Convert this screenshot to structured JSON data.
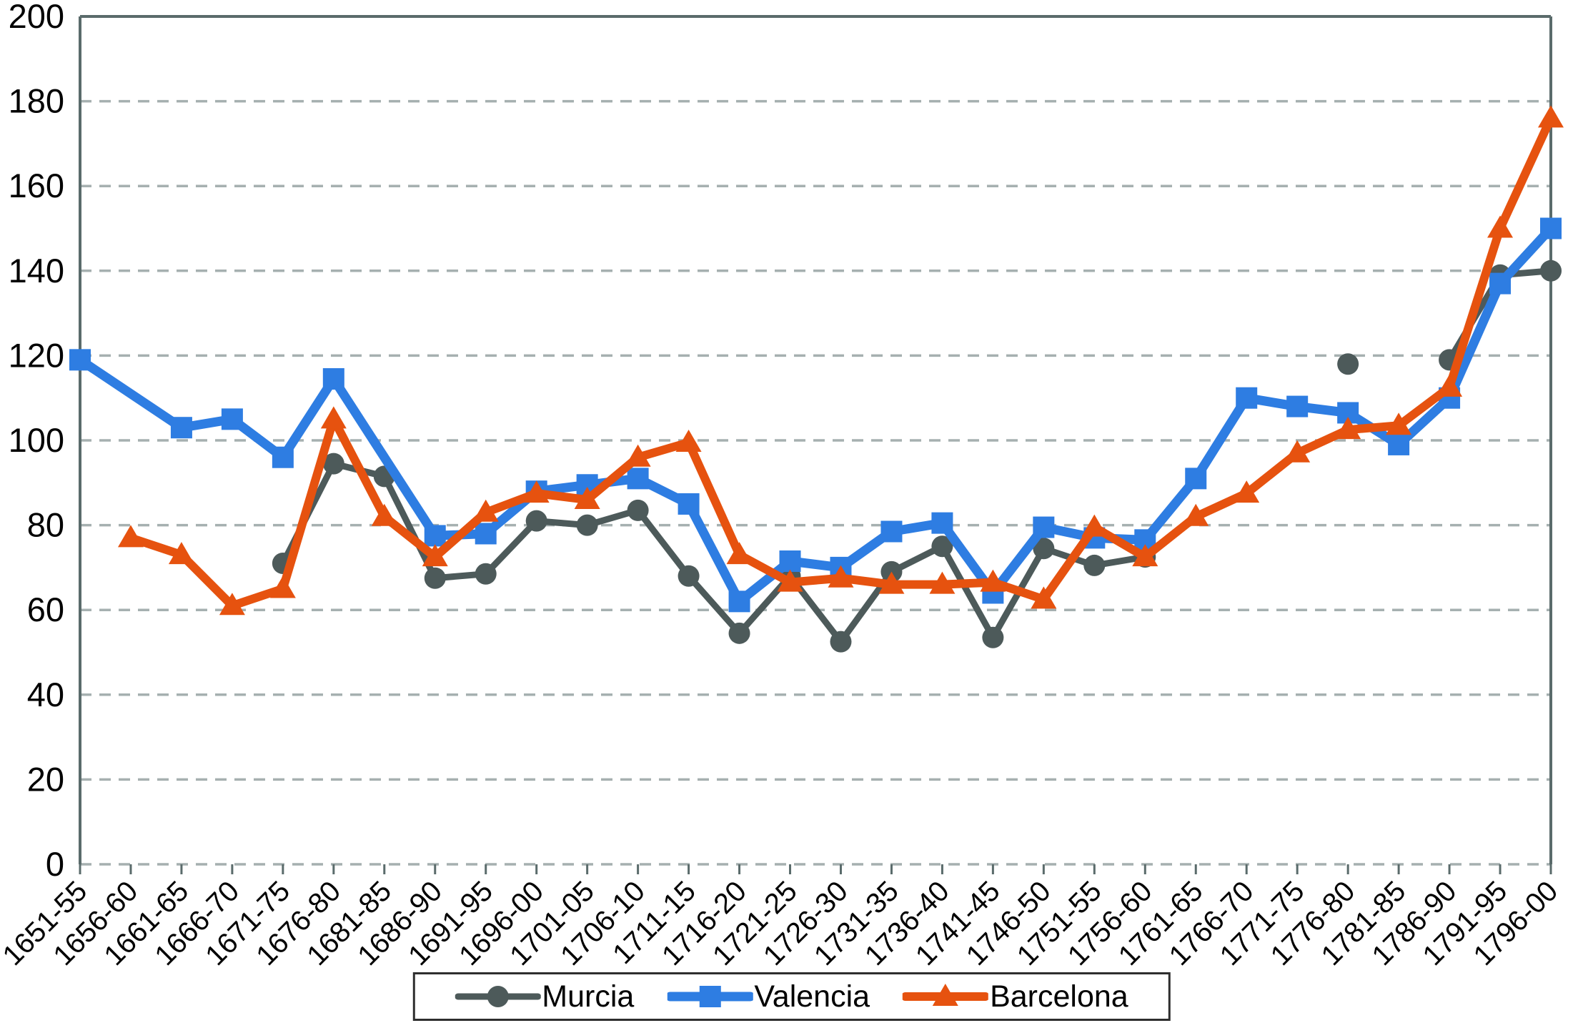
{
  "chart_data": {
    "type": "line",
    "title": "",
    "xlabel": "",
    "ylabel": "",
    "categories": [
      "1651-55",
      "1656-60",
      "1661-65",
      "1666-70",
      "1671-75",
      "1676-80",
      "1681-85",
      "1686-90",
      "1691-95",
      "1696-00",
      "1701-05",
      "1706-10",
      "1711-15",
      "1716-20",
      "1721-25",
      "1726-30",
      "1731-35",
      "1736-40",
      "1741-45",
      "1746-50",
      "1751-55",
      "1756-60",
      "1761-65",
      "1766-70",
      "1771-75",
      "1776-80",
      "1781-85",
      "1786-90",
      "1791-95",
      "1796-00"
    ],
    "series": [
      {
        "name": "Murcia",
        "color": "#4d5a5a",
        "marker": "circle",
        "line_width": 9,
        "connect_gaps": false,
        "values": [
          null,
          null,
          null,
          null,
          71,
          94.5,
          91.5,
          67.5,
          68.5,
          81,
          80,
          83.5,
          68,
          54.5,
          68,
          52.5,
          69,
          75,
          53.5,
          74.5,
          70.5,
          72.5,
          null,
          null,
          null,
          118,
          null,
          119,
          139,
          140
        ]
      },
      {
        "name": "Valencia",
        "color": "#2e7de2",
        "marker": "square",
        "line_width": 13,
        "connect_gaps": true,
        "values": [
          119,
          null,
          103,
          105,
          96,
          114.5,
          null,
          77.5,
          78,
          88,
          89.5,
          91,
          85,
          62,
          71.5,
          70,
          78.5,
          80.5,
          64,
          79.5,
          77,
          76.5,
          91,
          110,
          108,
          106.5,
          99,
          110,
          137,
          150
        ]
      },
      {
        "name": "Barcelona",
        "color": "#e6520f",
        "marker": "triangle",
        "line_width": 12,
        "connect_gaps": false,
        "values": [
          null,
          77,
          73,
          61,
          65,
          105,
          82,
          72.5,
          83,
          87.5,
          86,
          96,
          99.5,
          73,
          66.5,
          67.5,
          66,
          66,
          66.5,
          62.5,
          79.5,
          72.5,
          82,
          87.5,
          97,
          102.5,
          103.5,
          112.5,
          150,
          176
        ]
      }
    ],
    "y_axis": {
      "min": 0,
      "max": 200,
      "tick_step": 20,
      "ticks": [
        0,
        20,
        40,
        60,
        80,
        100,
        120,
        140,
        160,
        180,
        200
      ]
    },
    "grid": {
      "show": true,
      "style": "dashed",
      "color": "#a6b0b0"
    },
    "axis_color": "#5a6b6b",
    "text_color": "#000000",
    "legend_position": "bottom-center"
  }
}
